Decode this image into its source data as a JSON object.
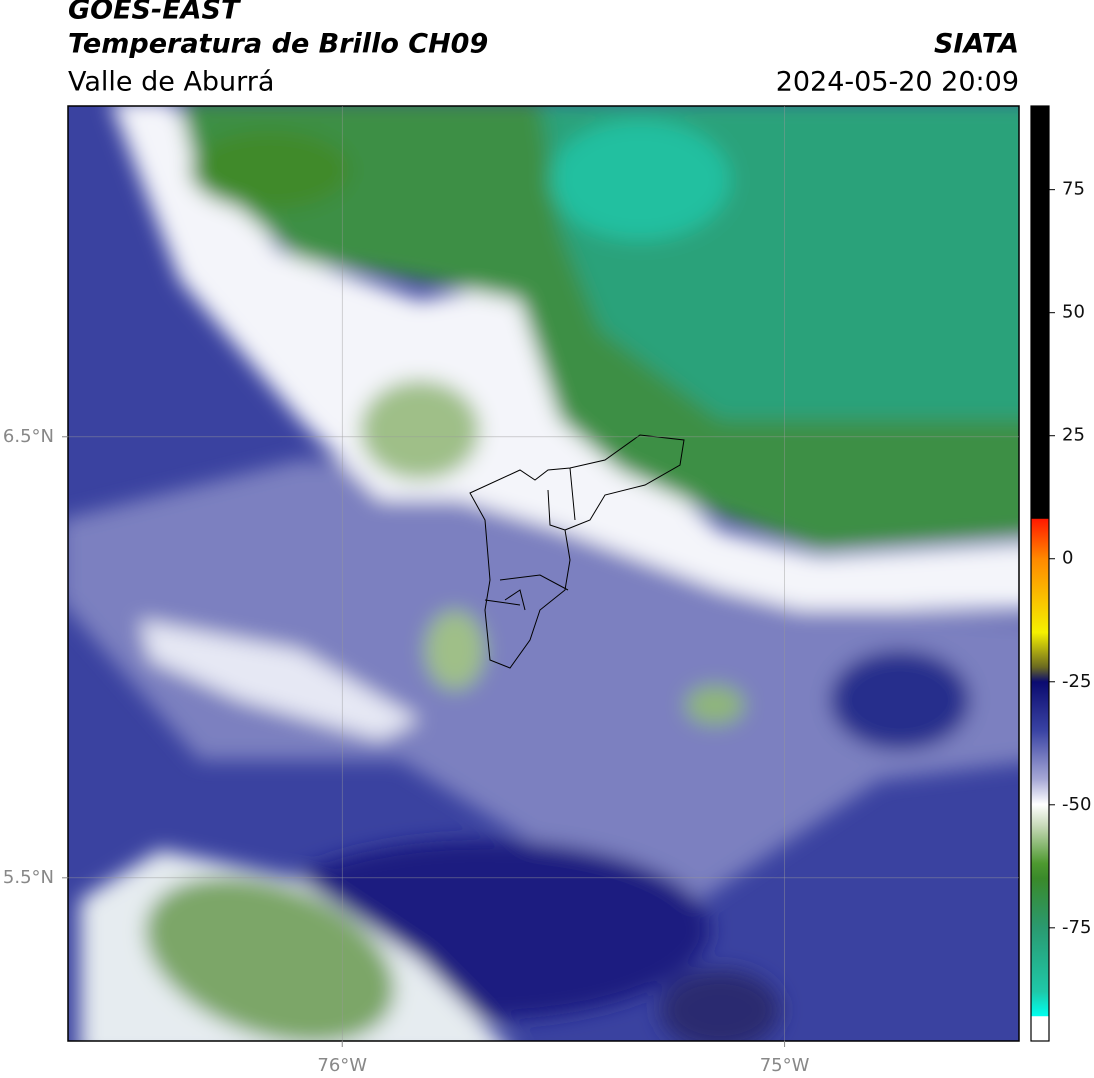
{
  "header": {
    "title": "GOES-EAST",
    "subtitle": "Temperatura de Brillo CH09",
    "region": "Valle de Aburrá",
    "source": "SIATA",
    "datetime": "2024-05-20 20:09"
  },
  "chart_data": {
    "type": "map",
    "xlim": [
      -76.62,
      -74.47
    ],
    "ylim": [
      5.13,
      7.25
    ],
    "xticks": [
      {
        "value": -76,
        "label": "76°W"
      },
      {
        "value": -75,
        "label": "75°W"
      }
    ],
    "yticks": [
      {
        "value": 6.5,
        "label": "6.5°N"
      },
      {
        "value": 5.5,
        "label": "5.5°N"
      }
    ],
    "grid": true,
    "colorbar": {
      "lim": [
        -98,
        92
      ],
      "ticks": [
        75,
        50,
        25,
        0,
        -25,
        -50,
        -75
      ]
    }
  }
}
